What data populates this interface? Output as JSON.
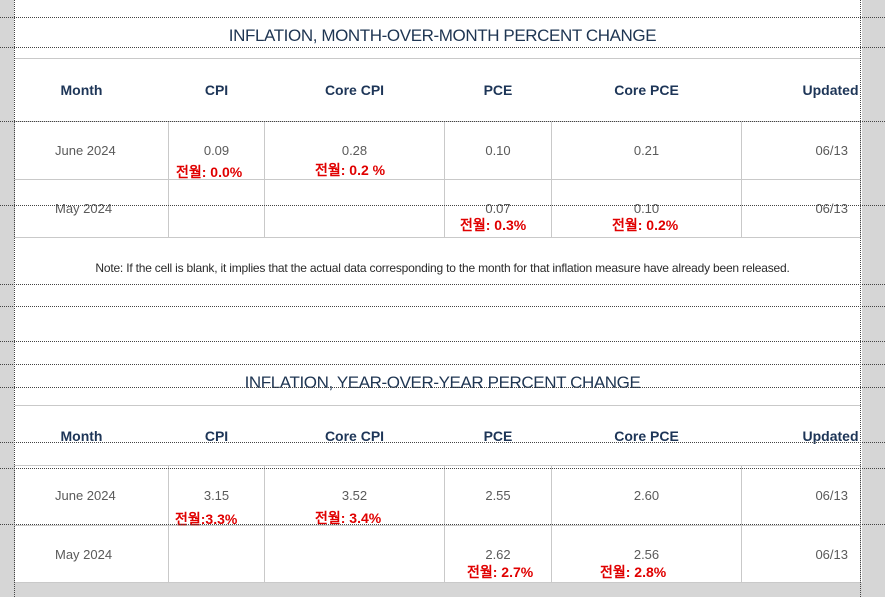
{
  "mom": {
    "title": "INFLATION, MONTH-OVER-MONTH PERCENT CHANGE",
    "headers": [
      "Month",
      "CPI",
      "Core CPI",
      "PCE",
      "Core PCE",
      "Updated"
    ],
    "rows": [
      {
        "month": "June 2024",
        "cpi": "0.09",
        "core_cpi": "0.28",
        "pce": "0.10",
        "core_pce": "0.21",
        "updated": "06/13"
      },
      {
        "month": "May 2024",
        "cpi": "",
        "core_cpi": "",
        "pce": "0.07",
        "core_pce": "0.10",
        "updated": "06/13"
      }
    ],
    "annotations": {
      "june_cpi": "전월: 0.0%",
      "june_core_cpi": "전월: 0.2 %",
      "may_pce": "전월: 0.3%",
      "may_core_pce": "전월: 0.2%"
    }
  },
  "note": "Note: If the cell is blank, it implies that the actual data corresponding to the month for that inflation measure have already been released.",
  "yoy": {
    "title": "INFLATION, YEAR-OVER-YEAR PERCENT CHANGE",
    "headers": [
      "Month",
      "CPI",
      "Core CPI",
      "PCE",
      "Core PCE",
      "Updated"
    ],
    "rows": [
      {
        "month": "June 2024",
        "cpi": "3.15",
        "core_cpi": "3.52",
        "pce": "2.55",
        "core_pce": "2.60",
        "updated": "06/13"
      },
      {
        "month": "May 2024",
        "cpi": "",
        "core_cpi": "",
        "pce": "2.62",
        "core_pce": "2.56",
        "updated": "06/13"
      }
    ],
    "annotations": {
      "june_cpi": "전월:3.3%",
      "june_core_cpi": "전월: 3.4%",
      "may_pce": "전월: 2.7%",
      "may_core_pce": "전월: 2.8%"
    }
  },
  "colors": {
    "heading": "#1d3557",
    "annotation": "#e00000",
    "background_band": "#d6d6d6"
  }
}
